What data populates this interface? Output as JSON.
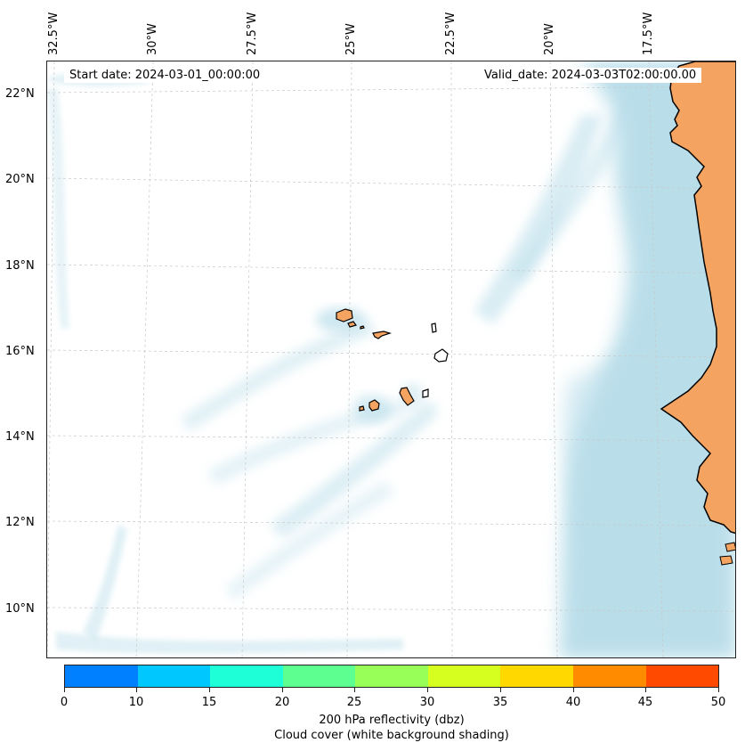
{
  "map": {
    "start_label": "Start date: 2024-03-01_00:00:00",
    "valid_label": "Valid_date: 2024-03-03T02:00:00.00",
    "lon_labels": [
      "32.5°W",
      "30°W",
      "27.5°W",
      "25°W",
      "22.5°W",
      "20°W",
      "17.5°W"
    ],
    "lat_labels": [
      "22°N",
      "20°N",
      "18°N",
      "16°N",
      "14°N",
      "12°N",
      "10°N"
    ],
    "land_color": "#f4a460",
    "cloud_color": "#add8e6",
    "islands": [
      "Santo Antão",
      "São Vicente",
      "Santa Luzia",
      "São Nicolau",
      "Sal",
      "Boa Vista",
      "Maio",
      "Santiago",
      "Fogo",
      "Brava"
    ]
  },
  "colorbar": {
    "ticks": [
      "0",
      "10",
      "15",
      "20",
      "25",
      "30",
      "35",
      "40",
      "45",
      "50"
    ],
    "colors": [
      "#0080ff",
      "#00c8ff",
      "#1effd8",
      "#5cff90",
      "#98ff58",
      "#d6ff20",
      "#ffd800",
      "#ff8c00",
      "#ff4a00"
    ],
    "title_line1": "200 hPa reflectivity (dbz)",
    "title_line2": "Cloud cover (white background shading)"
  }
}
